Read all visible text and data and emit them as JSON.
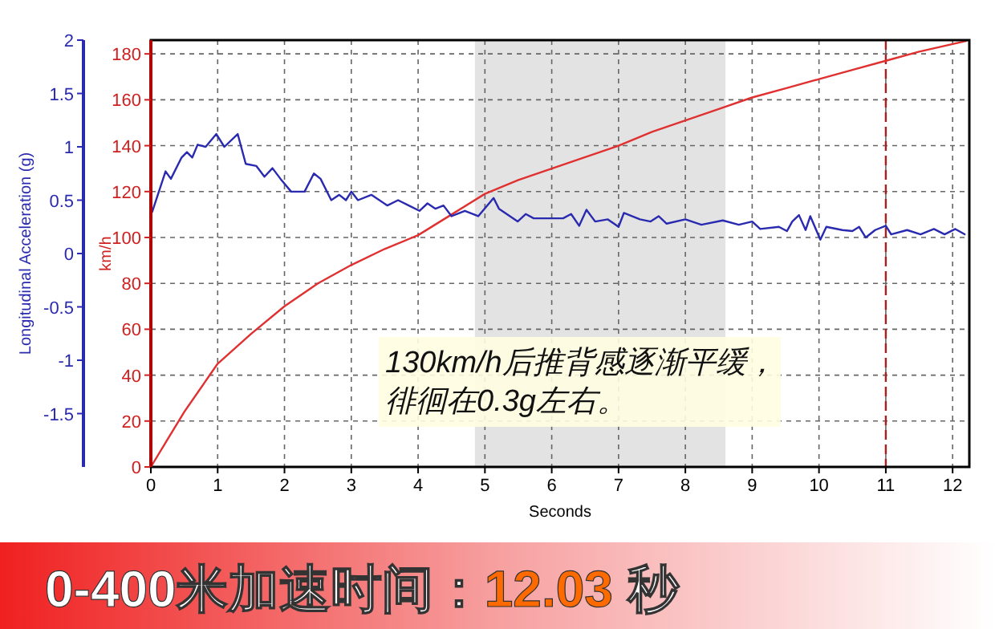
{
  "chart_data": {
    "type": "line",
    "title": "0-400米加速时间：12.03 秒",
    "xlabel": "Seconds",
    "ylabel": "km/h",
    "y2label": "Longitudinal Acceleration (g)",
    "xlim": [
      0,
      12.25
    ],
    "xticks": [
      0,
      1,
      2,
      3,
      4,
      5,
      6,
      7,
      8,
      9,
      10,
      11,
      12
    ],
    "ylim": [
      0,
      186
    ],
    "yticks": [
      0,
      20,
      40,
      60,
      80,
      100,
      120,
      140,
      160,
      180
    ],
    "y2lim": [
      -2,
      2
    ],
    "y2ticks": [
      -1.5,
      -1,
      -0.5,
      0,
      0.5,
      1,
      1.5,
      2
    ],
    "grid": true,
    "series": [
      {
        "color": "#e03030",
        "x": [
          0,
          0.25,
          0.5,
          1,
          1.5,
          2,
          2.5,
          3,
          3.5,
          4,
          4.5,
          5,
          5.5,
          6,
          6.5,
          7,
          7.5,
          8,
          8.5,
          9,
          9.5,
          10,
          10.5,
          11,
          11.5,
          12.2
        ],
        "values": [
          0,
          12,
          24,
          45,
          58,
          70,
          80,
          88,
          95,
          101,
          110,
          119,
          125,
          130,
          135,
          140,
          146,
          151,
          156,
          161,
          165,
          169,
          173,
          177,
          181,
          185.6
        ]
      },
      {
        "axis": "y2",
        "color": "#2a2ab0",
        "x": [
          0.02,
          0.22,
          0.3,
          0.46,
          0.54,
          0.62,
          0.7,
          0.82,
          0.98,
          1.1,
          1.3,
          1.42,
          1.58,
          1.7,
          1.82,
          1.94,
          2.1,
          2.3,
          2.44,
          2.54,
          2.7,
          2.82,
          2.92,
          3.0,
          3.1,
          3.3,
          3.54,
          3.7,
          3.86,
          4.02,
          4.14,
          4.26,
          4.38,
          4.5,
          4.7,
          4.9,
          5.13,
          5.21,
          5.49,
          5.61,
          5.73,
          6.17,
          6.29,
          6.41,
          6.52,
          6.65,
          6.84,
          7.0,
          7.08,
          7.32,
          7.48,
          7.6,
          7.72,
          8.0,
          8.24,
          8.56,
          8.8,
          9.0,
          9.12,
          9.4,
          9.52,
          9.6,
          9.7,
          9.8,
          9.87,
          10.02,
          10.11,
          10.35,
          10.5,
          10.6,
          10.7,
          10.84,
          11.0,
          11.08,
          11.32,
          11.52,
          11.72,
          11.88,
          12.04,
          12.18
        ],
        "values": [
          0.39,
          0.77,
          0.7,
          0.9,
          0.95,
          0.9,
          1.02,
          1.0,
          1.12,
          1.0,
          1.12,
          0.84,
          0.82,
          0.72,
          0.8,
          0.7,
          0.58,
          0.58,
          0.75,
          0.7,
          0.5,
          0.55,
          0.5,
          0.58,
          0.5,
          0.55,
          0.45,
          0.5,
          0.45,
          0.4,
          0.47,
          0.42,
          0.45,
          0.35,
          0.4,
          0.35,
          0.52,
          0.42,
          0.3,
          0.37,
          0.33,
          0.33,
          0.37,
          0.26,
          0.41,
          0.3,
          0.32,
          0.25,
          0.38,
          0.32,
          0.3,
          0.35,
          0.28,
          0.32,
          0.27,
          0.31,
          0.27,
          0.3,
          0.23,
          0.25,
          0.21,
          0.3,
          0.36,
          0.22,
          0.35,
          0.13,
          0.25,
          0.22,
          0.21,
          0.25,
          0.15,
          0.22,
          0.26,
          0.18,
          0.22,
          0.18,
          0.23,
          0.18,
          0.23,
          0.18
        ]
      }
    ],
    "bands": [
      {
        "axis": "x",
        "from": 4.85,
        "to": 8.6,
        "color": "#d0d0d0"
      }
    ],
    "ref_lines": [
      {
        "axis": "x",
        "value": 11,
        "color": "#aa2020",
        "line_style": "dashed"
      }
    ],
    "annotations": [
      "130km/h后推背感逐渐平缓，",
      "徘徊在0.3g左右。"
    ]
  }
}
